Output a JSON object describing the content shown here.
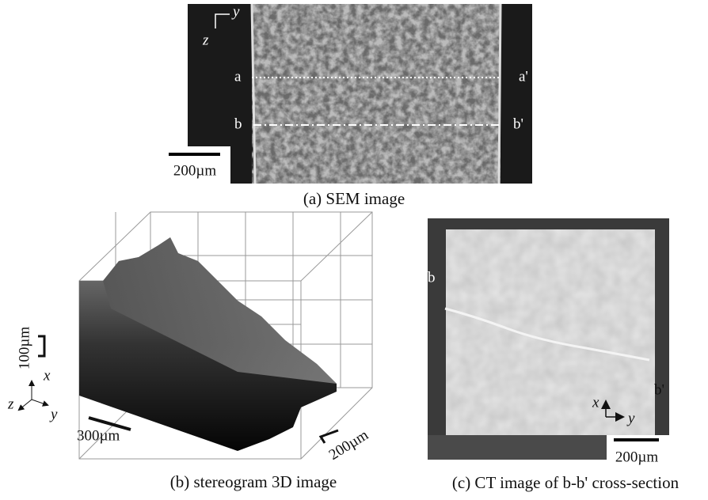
{
  "panel_a": {
    "caption": "(a) SEM image",
    "axis_y": "y",
    "axis_z": "z",
    "line_a_start": "a",
    "line_a_end": "a'",
    "line_b_start": "b",
    "line_b_end": "b'",
    "scale": "200µm"
  },
  "panel_b": {
    "caption": "(b) stereogram 3D image",
    "scale_height": "100µm",
    "axis_x": "x",
    "axis_z": "z",
    "axis_y": "y",
    "scale_y": "300µm",
    "scale_x": "200µm"
  },
  "panel_c": {
    "caption": "(c) CT image of b-b' cross-section",
    "edge_left": "b",
    "edge_right": "b'",
    "axis_x": "x",
    "axis_y": "y",
    "scale": "200µm"
  }
}
